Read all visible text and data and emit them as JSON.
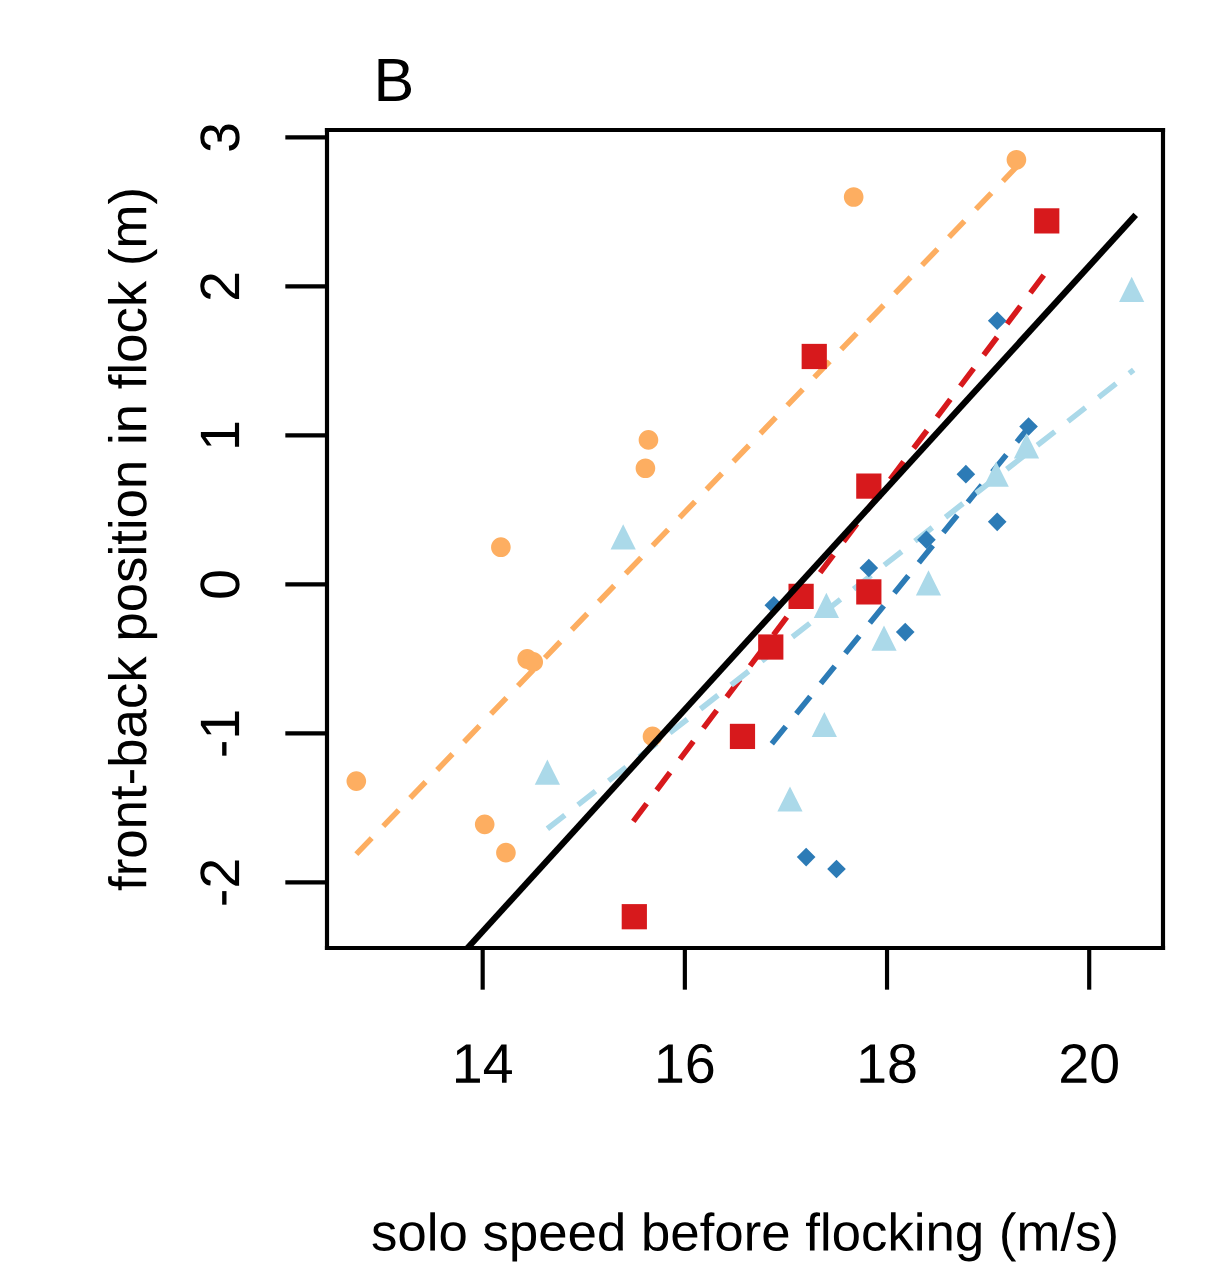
{
  "chart_data": {
    "type": "scatter",
    "title": "B",
    "xlabel": "solo speed before flocking (m/s)",
    "ylabel": "front-back position in flock (m)",
    "xlim": [
      12.46,
      20.73
    ],
    "ylim": [
      -2.44,
      3.05
    ],
    "xticks": [
      14,
      16,
      18,
      20
    ],
    "yticks": [
      -2,
      -1,
      0,
      1,
      2,
      3
    ],
    "grid": false,
    "legend": false,
    "series": [
      {
        "marker": "circle",
        "color": "#fdae61",
        "x": [
          12.75,
          14.02,
          14.23,
          14.18,
          14.44,
          14.5,
          15.68,
          15.61,
          15.64,
          17.67,
          19.28
        ],
        "values": [
          -1.32,
          -1.61,
          -1.8,
          0.25,
          -0.5,
          -0.52,
          -1.02,
          0.78,
          0.97,
          2.6,
          2.85
        ]
      },
      {
        "marker": "square",
        "color": "#d7191c",
        "x": [
          15.5,
          16.57,
          16.85,
          17.15,
          17.28,
          17.82,
          17.82,
          19.58
        ],
        "values": [
          -2.23,
          -1.02,
          -0.42,
          -0.08,
          1.53,
          0.66,
          -0.05,
          2.44
        ]
      },
      {
        "marker": "diamond",
        "color": "#2c7bb6",
        "x": [
          19.09,
          19.4,
          18.78,
          19.09,
          18.39,
          17.82,
          18.18,
          16.88,
          17.2,
          17.5
        ],
        "values": [
          1.77,
          1.06,
          0.74,
          0.42,
          0.3,
          0.11,
          -0.32,
          -0.14,
          -1.83,
          -1.91
        ]
      },
      {
        "marker": "triangle",
        "color": "#abd9e9",
        "x": [
          15.39,
          14.64,
          17.04,
          17.38,
          17.97,
          18.41,
          19.08,
          19.38,
          17.4,
          20.42
        ],
        "values": [
          0.32,
          -1.26,
          -1.44,
          -0.94,
          -0.36,
          0.01,
          0.74,
          0.93,
          -0.14,
          1.98
        ]
      },
      {
        "type": "line",
        "line_style": "dashed",
        "color": "#fdae61",
        "x": [
          12.75,
          19.32
        ],
        "values": [
          -1.81,
          2.83
        ]
      },
      {
        "type": "line",
        "line_style": "dashed",
        "color": "#d7191c",
        "x": [
          15.49,
          19.61
        ],
        "values": [
          -1.59,
          2.13
        ]
      },
      {
        "type": "line",
        "line_style": "dashed",
        "color": "#2c7bb6",
        "x": [
          16.86,
          19.42
        ],
        "values": [
          -1.07,
          1.07
        ]
      },
      {
        "type": "line",
        "line_style": "dashed",
        "color": "#abd9e9",
        "x": [
          14.64,
          20.44
        ],
        "values": [
          -1.64,
          1.44
        ]
      },
      {
        "type": "line",
        "line_style": "solid",
        "color": "#000000",
        "x": [
          13.85,
          20.46
        ],
        "values": [
          -2.44,
          2.48
        ]
      }
    ]
  }
}
